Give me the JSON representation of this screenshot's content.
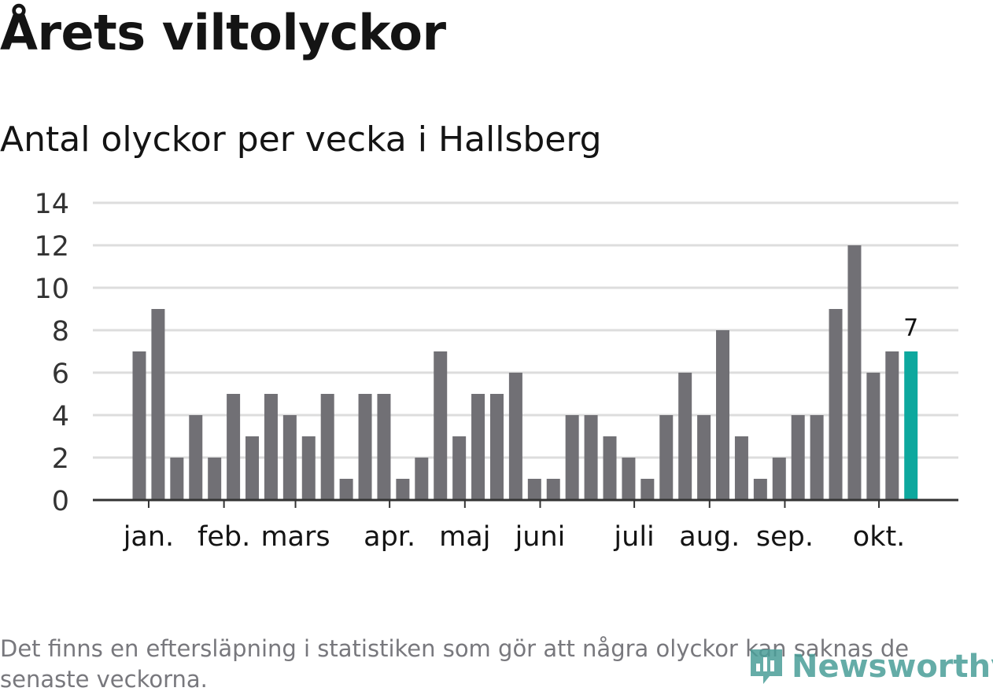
{
  "title": "Årets viltolyckor",
  "subtitle": "Antal olyckor per vecka i Hallsberg",
  "footnote": "Det finns en eftersläpning i statistiken som gör att några olyckor kan saknas de senaste veckorna.",
  "brand": "Newsworthy",
  "colors": {
    "bar": "#717075",
    "highlight": "#0da89e",
    "grid": "#dddddd",
    "axis": "#333333",
    "brand": "#4a9e98"
  },
  "chart_data": {
    "type": "bar",
    "title": "Antal olyckor per vecka i Hallsberg",
    "xlabel": "",
    "ylabel": "",
    "ylim": [
      0,
      14
    ],
    "yticks": [
      0,
      2,
      4,
      6,
      8,
      10,
      12,
      14
    ],
    "grid": true,
    "week_values": [
      7,
      9,
      2,
      4,
      2,
      5,
      3,
      5,
      4,
      3,
      5,
      1,
      5,
      5,
      1,
      2,
      7,
      3,
      5,
      5,
      6,
      1,
      1,
      4,
      4,
      3,
      2,
      1,
      4,
      6,
      4,
      8,
      3,
      1,
      2,
      4,
      4,
      9,
      12,
      6,
      7,
      7
    ],
    "highlight_last": true,
    "highlight_label": "7",
    "month_labels": [
      {
        "label": "jan.",
        "week_index": 0.5
      },
      {
        "label": "feb.",
        "week_index": 4.5
      },
      {
        "label": "mars",
        "week_index": 8.3
      },
      {
        "label": "apr.",
        "week_index": 13.3
      },
      {
        "label": "maj",
        "week_index": 17.3
      },
      {
        "label": "juni",
        "week_index": 21.3
      },
      {
        "label": "juli",
        "week_index": 26.3
      },
      {
        "label": "aug.",
        "week_index": 30.3
      },
      {
        "label": "sep.",
        "week_index": 34.3
      },
      {
        "label": "okt.",
        "week_index": 39.3
      }
    ]
  }
}
